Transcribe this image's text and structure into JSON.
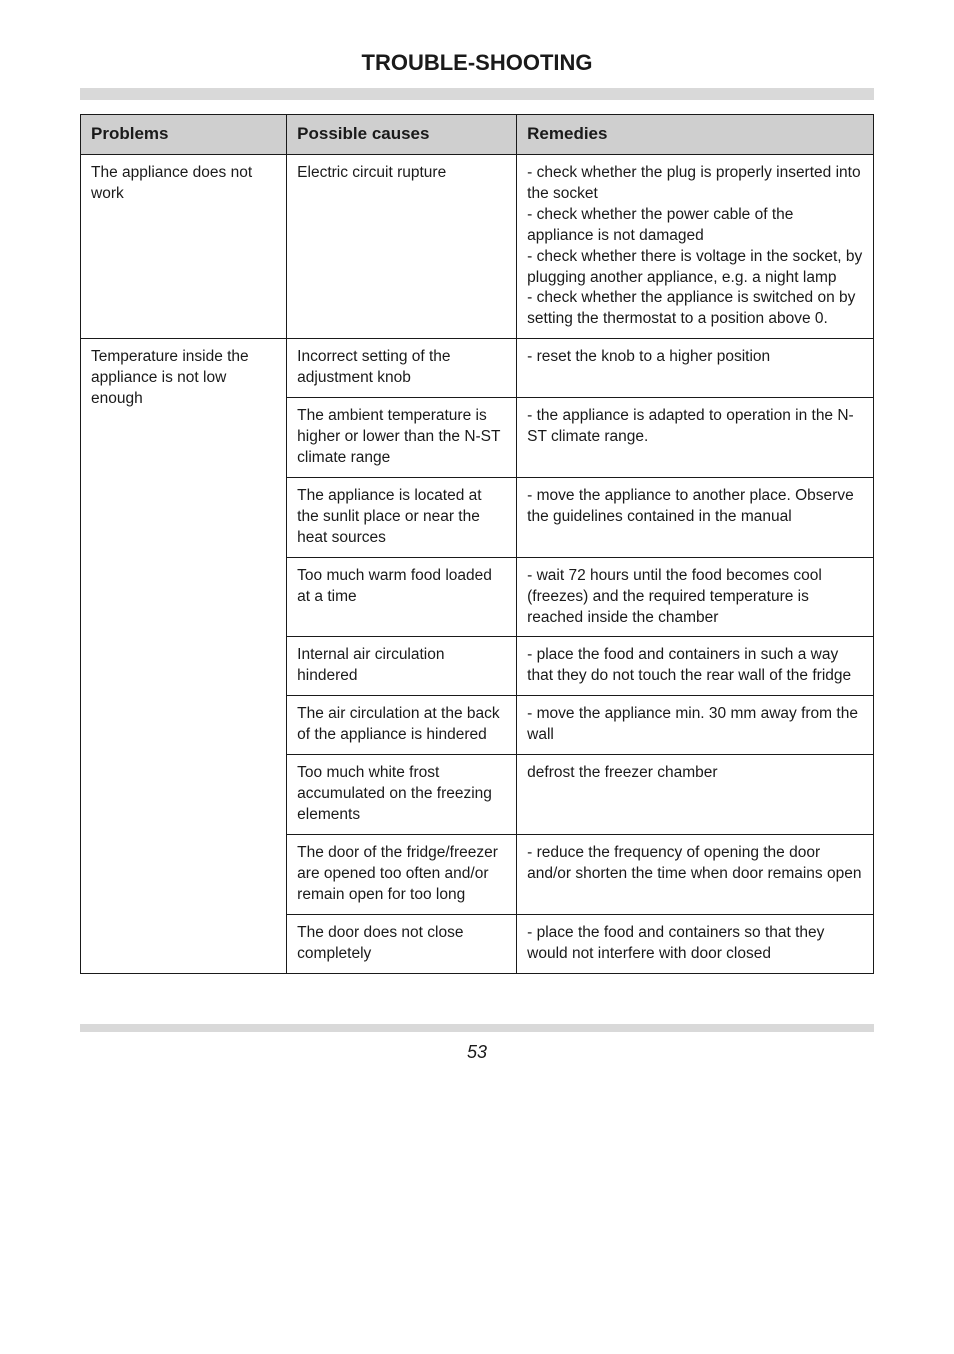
{
  "title": "TROUBLE-SHOOTING",
  "pageNumber": "53",
  "columns": [
    "Problems",
    "Possible causes",
    "Remedies"
  ],
  "rows": [
    {
      "problem": "The appliance does not work",
      "cause": "Electric circuit rupture",
      "remedy": "- check whether the plug is properly inserted into the socket\n- check whether the power cable of the appliance is not damaged\n- check whether there is voltage in the socket, by plugging another appliance, e.g. a night lamp\n- check whether the appliance is switched on by setting the thermostat to a position above 0."
    },
    {
      "problem": "Temperature inside the appliance is not low enough",
      "problemRowspan": 9,
      "cause": "Incorrect setting of the adjustment knob",
      "remedy": "- reset the knob to a higher position"
    },
    {
      "cause": "The ambient temperature is higher or lower than the N-ST climate range",
      "remedy": "- the appliance is adapted to operation in the N-ST climate range."
    },
    {
      "cause": "The appliance is located at the sunlit place or near the heat sources",
      "remedy": "- move the appliance to another place. Observe the guidelines contained in the manual"
    },
    {
      "cause": "Too much warm food loaded at a time",
      "remedy": "- wait 72 hours until the food becomes cool (freezes) and the required temperature is reached inside the chamber"
    },
    {
      "cause": "Internal air circulation hindered",
      "remedy": "- place the food and containers in such a way that they do not touch the rear wall of the fridge"
    },
    {
      "cause": "The air circulation at the back of the appliance is hindered",
      "remedy": "- move the appliance min. 30 mm away from the wall"
    },
    {
      "cause": "Too much white frost accumulated on the freezing elements",
      "remedy": "defrost the freezer chamber"
    },
    {
      "cause": "The door of the fridge/freezer are opened too often and/or remain open for too long",
      "remedy": "- reduce the frequency of opening the door and/or shorten the time when door remains open"
    },
    {
      "cause": "The door does not close completely",
      "remedy": "- place the food and containers so that they would not interfere with door closed"
    }
  ]
}
